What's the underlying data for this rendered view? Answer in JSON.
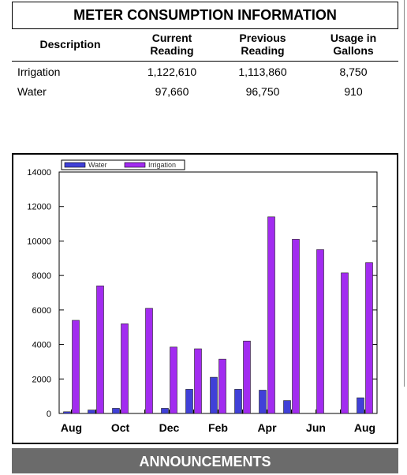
{
  "header": {
    "title": "METER CONSUMPTION INFORMATION"
  },
  "table": {
    "columns": [
      "Description",
      "Current\nReading",
      "Previous\nReading",
      "Usage in\nGallons"
    ],
    "rows": [
      [
        "Irrigation",
        "1,122,610",
        "1,113,860",
        "8,750"
      ],
      [
        "Water",
        "97,660",
        "96,750",
        "910"
      ]
    ]
  },
  "chart_data": {
    "type": "bar",
    "categories": [
      "Aug",
      null,
      "Oct",
      null,
      "Dec",
      null,
      "Feb",
      null,
      "Apr",
      null,
      "Jun",
      null,
      "Aug"
    ],
    "series": [
      {
        "name": "Water",
        "color": "#4040d8",
        "values": [
          100,
          200,
          300,
          0,
          300,
          1400,
          2100,
          1400,
          1350,
          750,
          0,
          0,
          910
        ]
      },
      {
        "name": "Irrigation",
        "color": "#a22cf0",
        "values": [
          5400,
          7400,
          5200,
          6100,
          3850,
          3750,
          3150,
          4200,
          11400,
          10100,
          9500,
          8150,
          8750
        ]
      }
    ],
    "ylim": [
      0,
      14000
    ],
    "yticks": [
      0,
      2000,
      4000,
      6000,
      8000,
      10000,
      12000,
      14000
    ],
    "legend": "top-left"
  },
  "announcements": {
    "title": "ANNOUNCEMENTS"
  }
}
